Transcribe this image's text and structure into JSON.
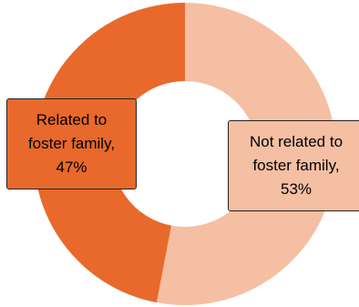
{
  "chart_data": {
    "type": "pie",
    "donut": true,
    "categories": [
      "Not related to foster family",
      "Related to foster family"
    ],
    "values": [
      53,
      47
    ],
    "colors": [
      "#f5bfa3",
      "#e8692b"
    ],
    "data_labels": [
      {
        "line1": "Not related to",
        "line2": "foster family,",
        "line3": "53%"
      },
      {
        "line1": "Related to",
        "line2": "foster family,",
        "line3": "47%"
      }
    ],
    "title": "",
    "legend": "none"
  }
}
